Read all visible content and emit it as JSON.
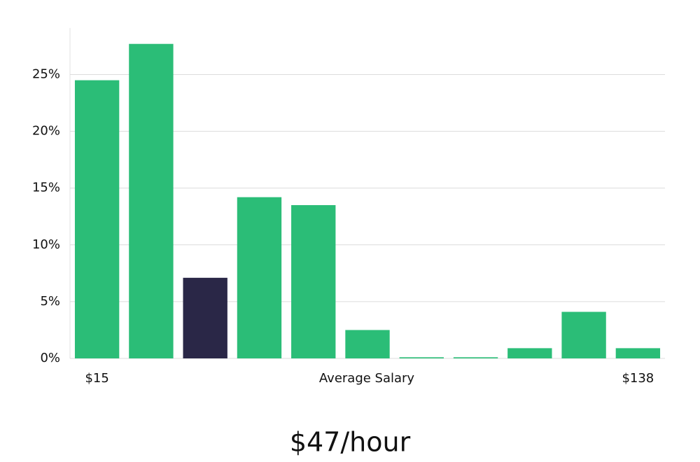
{
  "chart_data": {
    "type": "bar",
    "categories": [
      "$15",
      null,
      null,
      null,
      null,
      null,
      null,
      null,
      null,
      null,
      "$138"
    ],
    "values": [
      24.5,
      27.7,
      7.1,
      14.2,
      13.5,
      2.5,
      0.1,
      0.1,
      0.9,
      4.1,
      0.9
    ],
    "colors": [
      "#2bbd77",
      "#2bbd77",
      "#2a2747",
      "#2bbd77",
      "#2bbd77",
      "#2bbd77",
      "#2bbd77",
      "#2bbd77",
      "#2bbd77",
      "#2bbd77",
      "#2bbd77"
    ],
    "x_label": "Average Salary",
    "ylim": [
      0,
      29.1
    ],
    "yticks": [
      {
        "value": 0,
        "label": "0%"
      },
      {
        "value": 5,
        "label": "5%"
      },
      {
        "value": 10,
        "label": "10%"
      },
      {
        "value": 15,
        "label": "15%"
      },
      {
        "value": 20,
        "label": "20%"
      },
      {
        "value": 25,
        "label": "25%"
      }
    ],
    "grid": true
  },
  "summary": "$47/hour"
}
